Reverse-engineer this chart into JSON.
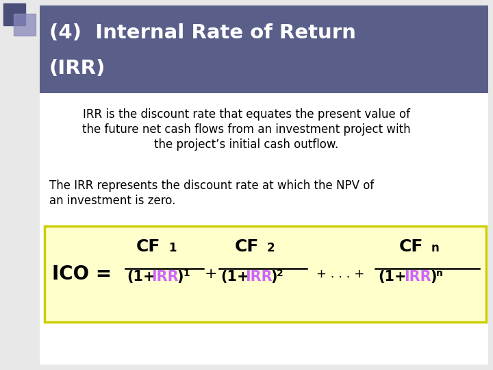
{
  "bg_color": "#e8e8e8",
  "title_box_color": "#5a5f8a",
  "title_text_line1": "(4)  Internal Rate of Return",
  "title_text_line2": "(IRR)",
  "title_text_color": "#ffffff",
  "body_bg": "#ffffff",
  "para1_line1": "IRR is the discount rate that equates the present value of",
  "para1_line2": "the future net cash flows from an investment project with",
  "para1_line3": "the project’s initial cash outflow.",
  "para2_line1": "The IRR represents the discount rate at which the NPV of",
  "para2_line2": "an investment is zero.",
  "formula_box_bg": "#ffffcc",
  "formula_box_border": "#cccc00",
  "accent_color": "#cc66ff",
  "text_color": "#000000",
  "corner_sq1_color": "#4a4f7a",
  "corner_sq2_color": "#8888bb"
}
